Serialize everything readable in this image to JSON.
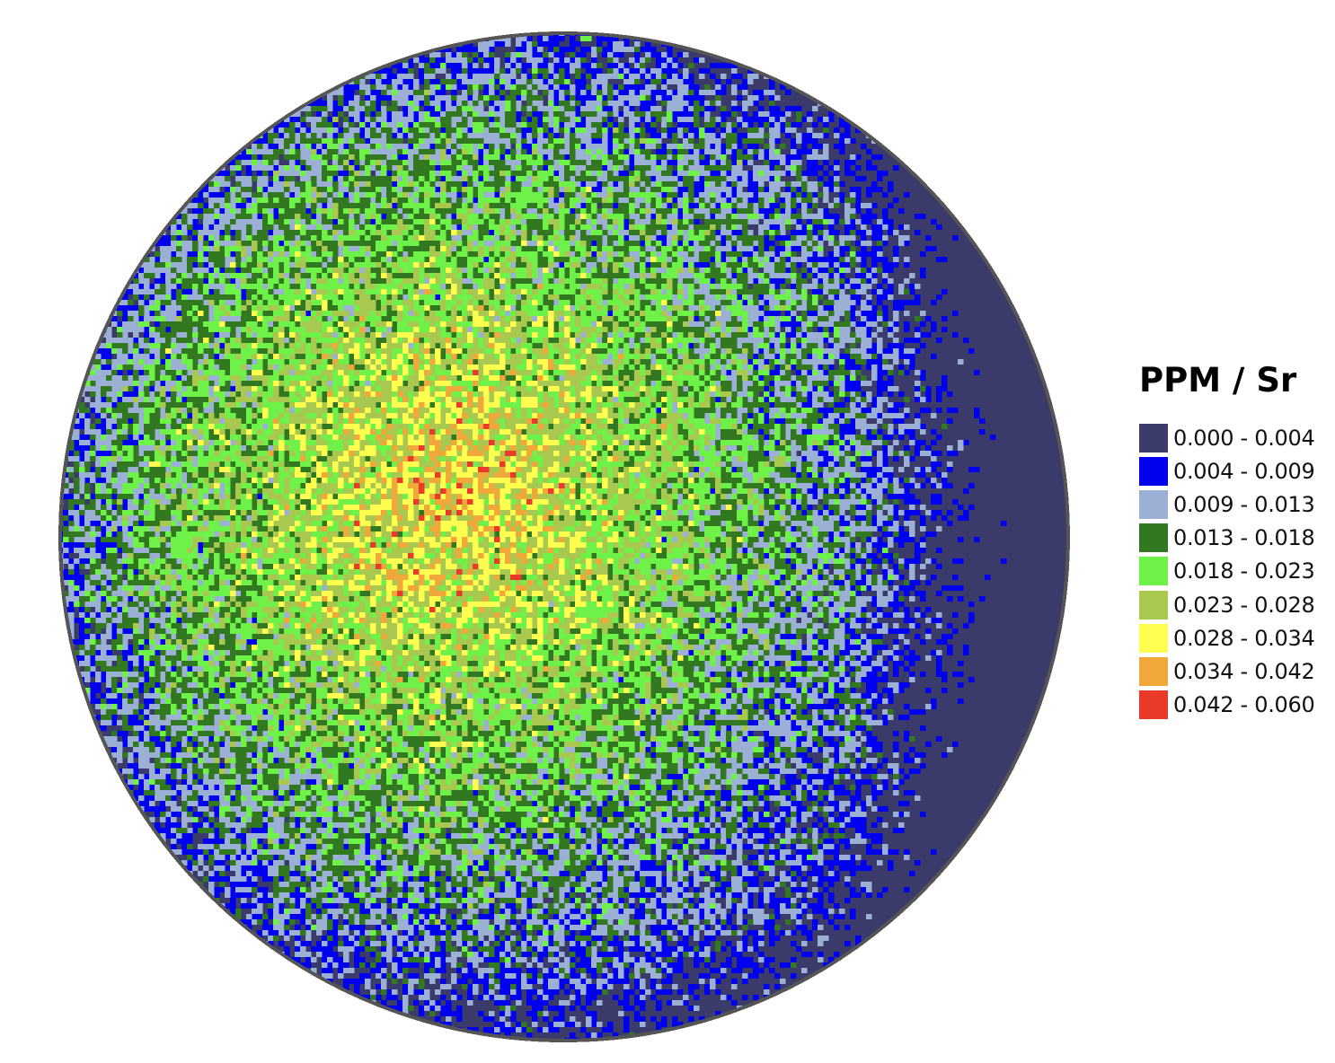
{
  "chart_data": {
    "type": "heatmap",
    "title": "",
    "shape": "circular wafer map",
    "grid": "off",
    "legend_placement": "right",
    "legend": {
      "title": "PPM / Sr",
      "bins": [
        {
          "label": "0.000 - 0.004",
          "min": 0.0,
          "max": 0.004,
          "color": "#3b3b6b"
        },
        {
          "label": "0.004 - 0.009",
          "min": 0.004,
          "max": 0.009,
          "color": "#0000ef"
        },
        {
          "label": "0.009 - 0.013",
          "min": 0.009,
          "max": 0.013,
          "color": "#9cb0d6"
        },
        {
          "label": "0.013 - 0.018",
          "min": 0.013,
          "max": 0.018,
          "color": "#327820"
        },
        {
          "label": "0.018 - 0.023",
          "min": 0.018,
          "max": 0.023,
          "color": "#6ef24a"
        },
        {
          "label": "0.023 - 0.028",
          "min": 0.023,
          "max": 0.028,
          "color": "#a8c850"
        },
        {
          "label": "0.028 - 0.034",
          "min": 0.028,
          "max": 0.034,
          "color": "#ffff50"
        },
        {
          "label": "0.034 - 0.042",
          "min": 0.034,
          "max": 0.042,
          "color": "#f0a83a"
        },
        {
          "label": "0.042 - 0.060",
          "min": 0.042,
          "max": 0.06,
          "color": "#ea3a2a"
        }
      ]
    }
  }
}
